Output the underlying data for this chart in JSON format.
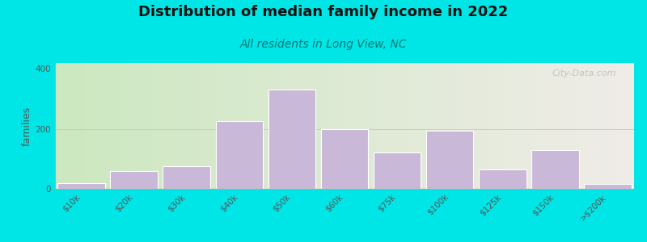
{
  "title": "Distribution of median family income in 2022",
  "subtitle": "All residents in Long View, NC",
  "categories": [
    "$10k",
    "$20k",
    "$30k",
    "$40k",
    "$50k",
    "$60k",
    "$75k",
    "$100k",
    "$125k",
    "$150k",
    ">$200k"
  ],
  "values": [
    20,
    60,
    75,
    225,
    330,
    200,
    120,
    195,
    65,
    130,
    15
  ],
  "bar_color": "#c9b8d8",
  "bar_edge_color": "#ffffff",
  "ylabel": "families",
  "ylim": [
    0,
    420
  ],
  "yticks": [
    0,
    200,
    400
  ],
  "bg_outer": "#00e5e5",
  "bg_left_color": "#cce8c0",
  "bg_right_color": "#f0ece8",
  "watermark": "City-Data.com",
  "title_fontsize": 13,
  "subtitle_fontsize": 10,
  "ylabel_fontsize": 9,
  "tick_fontsize": 7.5
}
